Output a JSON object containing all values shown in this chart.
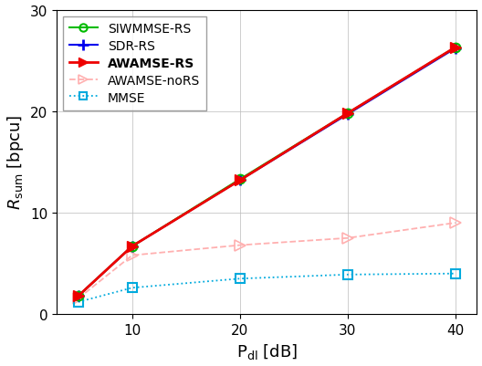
{
  "x": [
    5,
    10,
    20,
    30,
    40
  ],
  "SIWMMSE_RS": [
    1.8,
    6.7,
    13.3,
    19.8,
    26.3
  ],
  "SDR_RS": [
    1.8,
    6.7,
    13.2,
    19.7,
    26.2
  ],
  "AWAMSE_RS": [
    1.8,
    6.7,
    13.2,
    19.8,
    26.3
  ],
  "AWAMSE_noRS": [
    1.55,
    5.8,
    6.8,
    7.5,
    9.0
  ],
  "MMSE": [
    1.2,
    2.6,
    3.5,
    3.9,
    4.0
  ],
  "colors": {
    "SIWMMSE_RS": "#00bb00",
    "SDR_RS": "#0000ee",
    "AWAMSE_RS": "#ee0000",
    "AWAMSE_noRS": "#ffb0b0",
    "MMSE": "#00aadd"
  },
  "xlabel": "$\\mathrm{P_{dl}}$ [dB]",
  "ylabel": "$R_{\\mathrm{sum}}$ [bpcu]",
  "xlim": [
    3,
    42
  ],
  "ylim": [
    0,
    30
  ],
  "xticks": [
    10,
    20,
    30,
    40
  ],
  "yticks": [
    0,
    10,
    20,
    30
  ]
}
